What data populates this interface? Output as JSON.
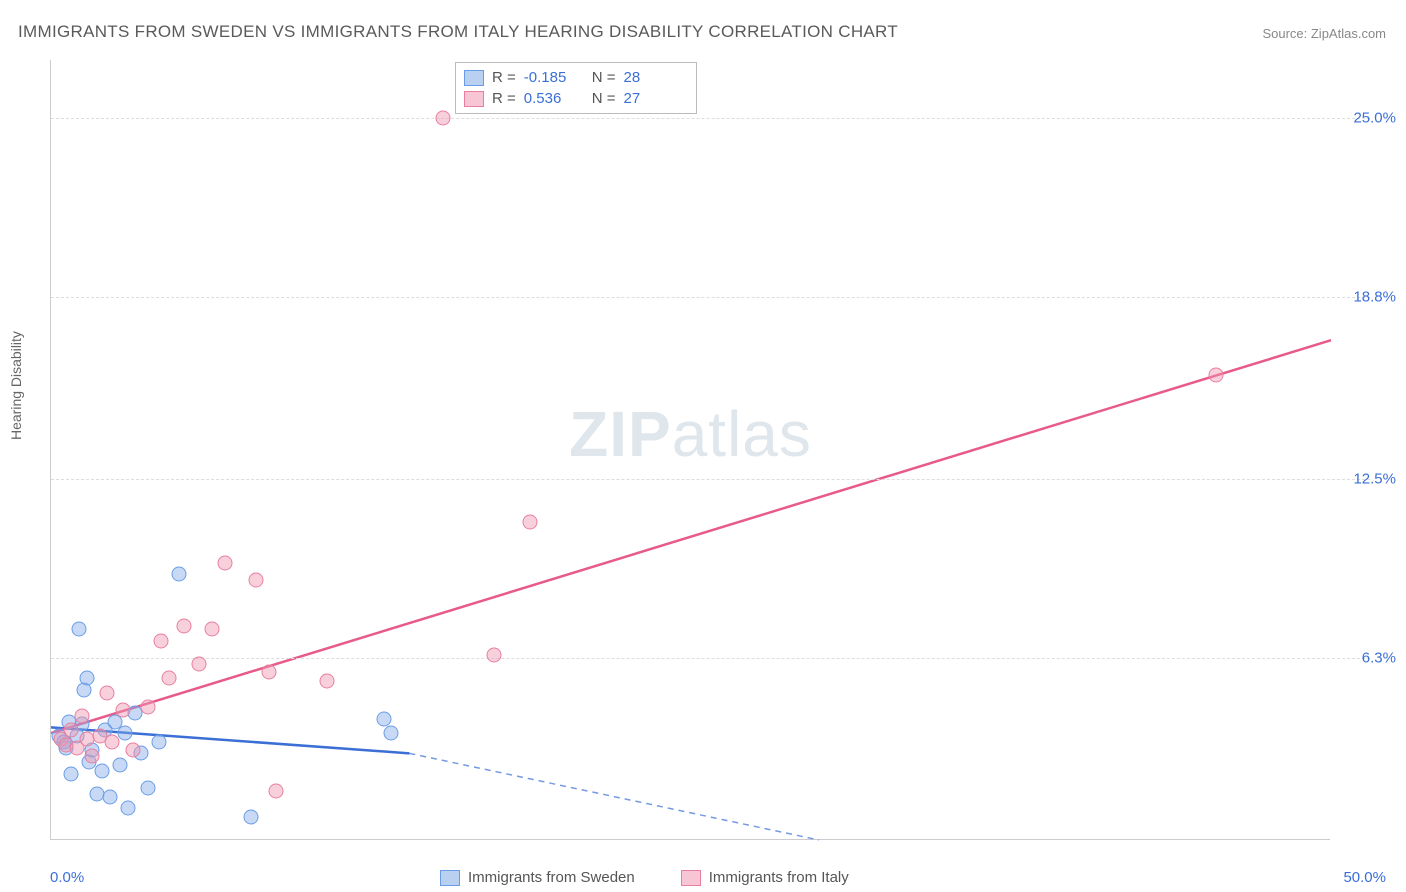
{
  "title": "IMMIGRANTS FROM SWEDEN VS IMMIGRANTS FROM ITALY HEARING DISABILITY CORRELATION CHART",
  "source": "Source: ZipAtlas.com",
  "ylabel": "Hearing Disability",
  "watermark_a": "ZIP",
  "watermark_b": "atlas",
  "chart": {
    "type": "scatter-with-regression",
    "background_color": "#ffffff",
    "grid_color": "#dddddd",
    "axis_color": "#cccccc",
    "text_color": "#5a5a5a",
    "value_color": "#3b6fd6",
    "title_fontsize": 17,
    "label_fontsize": 14,
    "tick_fontsize": 15,
    "xlim": [
      0,
      50
    ],
    "ylim": [
      0,
      27
    ],
    "x_ticks": [
      {
        "v": 0,
        "label": "0.0%"
      },
      {
        "v": 50,
        "label": "50.0%"
      }
    ],
    "y_ticks": [
      {
        "v": 6.3,
        "label": "6.3%"
      },
      {
        "v": 12.5,
        "label": "12.5%"
      },
      {
        "v": 18.8,
        "label": "18.8%"
      },
      {
        "v": 25.0,
        "label": "25.0%"
      }
    ],
    "marker_radius": 7.5,
    "series": [
      {
        "key": "sweden",
        "label": "Immigrants from Sweden",
        "color_fill": "rgba(130,170,230,0.45)",
        "color_stroke": "#6a9de8",
        "line_color": "#3b6fd6",
        "R": "-0.185",
        "N": "28",
        "regression": {
          "x1": 0,
          "y1": 3.9,
          "x2_solid": 14,
          "y2_solid": 3.0,
          "x2_dash": 30,
          "y2_dash": 0.0
        },
        "points": [
          [
            0.3,
            3.6
          ],
          [
            0.5,
            3.4
          ],
          [
            0.6,
            3.2
          ],
          [
            0.7,
            4.1
          ],
          [
            0.8,
            2.3
          ],
          [
            1.0,
            3.6
          ],
          [
            1.1,
            7.3
          ],
          [
            1.2,
            4.0
          ],
          [
            1.3,
            5.2
          ],
          [
            1.4,
            5.6
          ],
          [
            1.5,
            2.7
          ],
          [
            1.6,
            3.1
          ],
          [
            1.8,
            1.6
          ],
          [
            2.0,
            2.4
          ],
          [
            2.1,
            3.8
          ],
          [
            2.3,
            1.5
          ],
          [
            2.5,
            4.1
          ],
          [
            2.7,
            2.6
          ],
          [
            2.9,
            3.7
          ],
          [
            3.0,
            1.1
          ],
          [
            3.3,
            4.4
          ],
          [
            3.5,
            3.0
          ],
          [
            3.8,
            1.8
          ],
          [
            4.2,
            3.4
          ],
          [
            5.0,
            9.2
          ],
          [
            7.8,
            0.8
          ],
          [
            13.0,
            4.2
          ],
          [
            13.3,
            3.7
          ]
        ]
      },
      {
        "key": "italy",
        "label": "Immigrants from Italy",
        "color_fill": "rgba(240,150,175,0.45)",
        "color_stroke": "#e87fa0",
        "line_color": "#e85a8a",
        "R": "0.536",
        "N": "27",
        "regression": {
          "x1": 0,
          "y1": 3.7,
          "x2_solid": 50,
          "y2_solid": 17.3,
          "x2_dash": 50,
          "y2_dash": 17.3
        },
        "points": [
          [
            0.4,
            3.5
          ],
          [
            0.6,
            3.3
          ],
          [
            0.8,
            3.8
          ],
          [
            1.0,
            3.2
          ],
          [
            1.2,
            4.3
          ],
          [
            1.4,
            3.5
          ],
          [
            1.6,
            2.9
          ],
          [
            1.9,
            3.6
          ],
          [
            2.2,
            5.1
          ],
          [
            2.4,
            3.4
          ],
          [
            2.8,
            4.5
          ],
          [
            3.2,
            3.1
          ],
          [
            3.8,
            4.6
          ],
          [
            4.3,
            6.9
          ],
          [
            4.6,
            5.6
          ],
          [
            5.2,
            7.4
          ],
          [
            5.8,
            6.1
          ],
          [
            6.3,
            7.3
          ],
          [
            6.8,
            9.6
          ],
          [
            8.0,
            9.0
          ],
          [
            8.5,
            5.8
          ],
          [
            8.8,
            1.7
          ],
          [
            10.8,
            5.5
          ],
          [
            15.3,
            25.0
          ],
          [
            17.3,
            6.4
          ],
          [
            18.7,
            11.0
          ],
          [
            45.5,
            16.1
          ]
        ]
      }
    ]
  },
  "legend_top": {
    "symbol_R": "R =",
    "symbol_N": "N ="
  }
}
